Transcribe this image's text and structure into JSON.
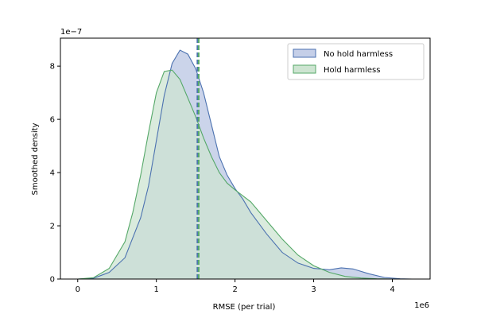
{
  "chart_data": {
    "type": "area",
    "title": "",
    "xlabel": "RMSE (per trial)",
    "ylabel": "Smoothed density",
    "x_scale_label": "1e6",
    "y_scale_label": "1e−7",
    "xlim": [
      -0.22,
      4.48
    ],
    "ylim": [
      0,
      9.05
    ],
    "x_ticks": [
      0,
      1,
      2,
      3,
      4
    ],
    "x_tick_labels": [
      "0",
      "1",
      "2",
      "3",
      "4"
    ],
    "y_ticks": [
      0,
      2,
      4,
      6,
      8
    ],
    "y_tick_labels": [
      "0",
      "2",
      "4",
      "6",
      "8"
    ],
    "grid": false,
    "legend_position": "top-right",
    "series": [
      {
        "name": "No hold harmless",
        "line_color": "#4c72b0",
        "fill_color": "#c5cfe8",
        "x": [
          0.0,
          0.2,
          0.4,
          0.6,
          0.8,
          0.9,
          1.0,
          1.1,
          1.2,
          1.3,
          1.4,
          1.5,
          1.6,
          1.7,
          1.8,
          1.9,
          2.0,
          2.1,
          2.2,
          2.4,
          2.6,
          2.8,
          3.0,
          3.2,
          3.35,
          3.5,
          3.7,
          3.9,
          4.1,
          4.25
        ],
        "y": [
          0.0,
          0.03,
          0.25,
          0.8,
          2.3,
          3.5,
          5.2,
          6.9,
          8.1,
          8.6,
          8.45,
          7.9,
          7.0,
          5.8,
          4.6,
          3.9,
          3.4,
          3.0,
          2.5,
          1.7,
          1.0,
          0.6,
          0.4,
          0.35,
          0.42,
          0.38,
          0.2,
          0.06,
          0.01,
          0.0
        ]
      },
      {
        "name": "Hold harmless",
        "line_color": "#55a868",
        "fill_color": "#cde4d1",
        "x": [
          0.0,
          0.2,
          0.4,
          0.6,
          0.7,
          0.8,
          0.9,
          1.0,
          1.1,
          1.2,
          1.3,
          1.4,
          1.5,
          1.6,
          1.7,
          1.8,
          1.9,
          2.0,
          2.2,
          2.4,
          2.6,
          2.8,
          3.0,
          3.2,
          3.4,
          3.6,
          3.8,
          4.0
        ],
        "y": [
          0.0,
          0.05,
          0.4,
          1.4,
          2.5,
          3.9,
          5.5,
          7.0,
          7.8,
          7.85,
          7.5,
          6.8,
          6.1,
          5.3,
          4.6,
          4.0,
          3.6,
          3.35,
          2.9,
          2.2,
          1.5,
          0.9,
          0.5,
          0.25,
          0.1,
          0.04,
          0.01,
          0.0
        ]
      }
    ],
    "reference_lines": [
      {
        "series": "No hold harmless",
        "x": 1.53,
        "style": "dashed",
        "color": "#4c72b0"
      },
      {
        "series": "Hold harmless",
        "x": 1.53,
        "style": "dashed",
        "color": "#55a868"
      }
    ]
  }
}
